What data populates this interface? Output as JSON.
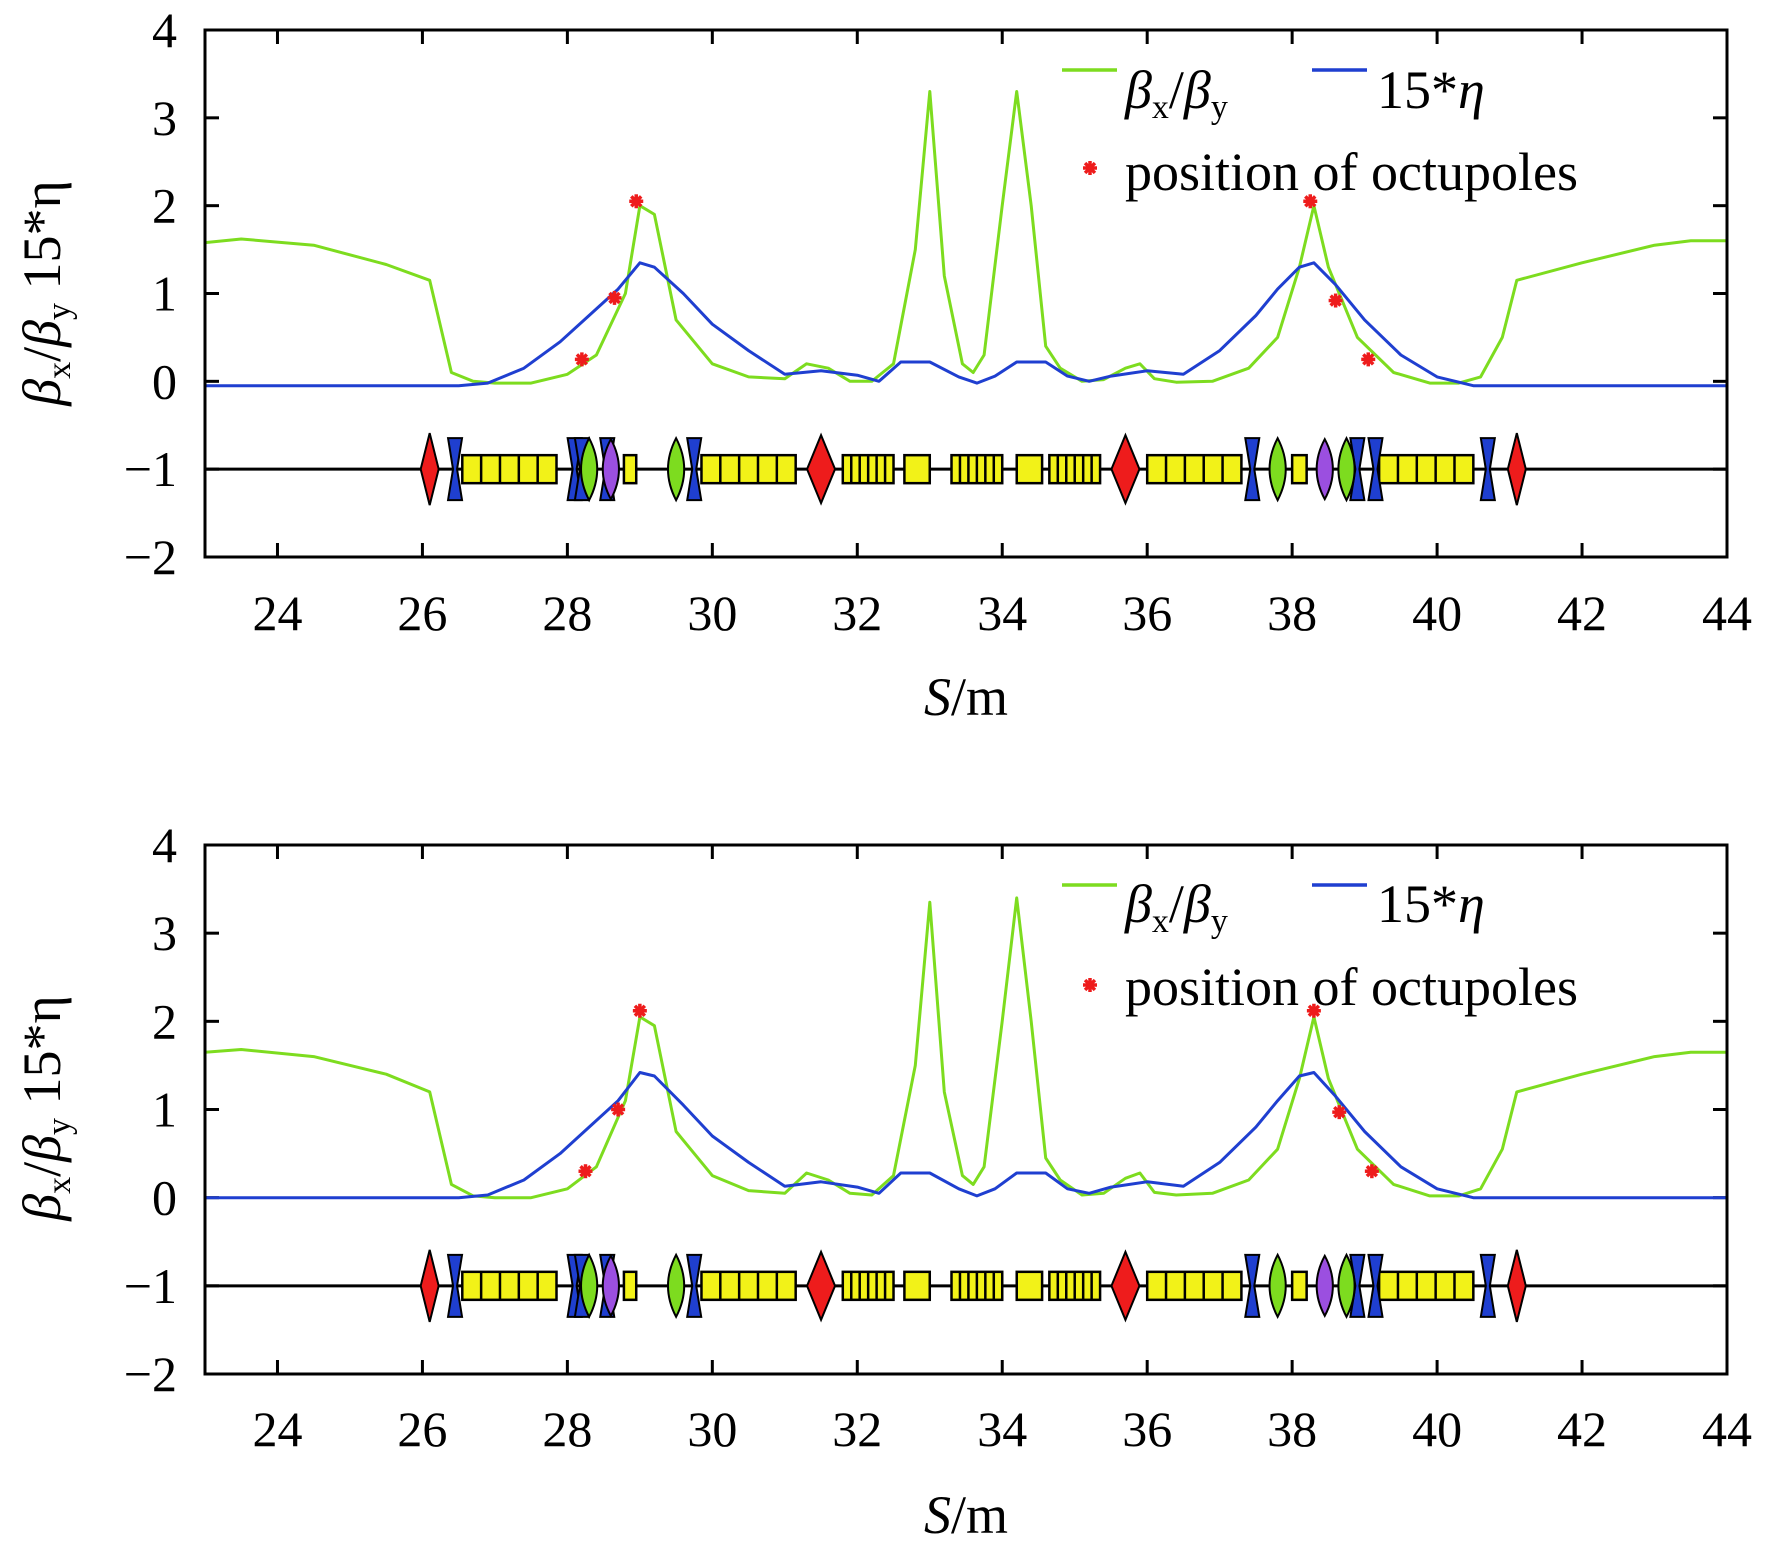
{
  "figure": {
    "panels": 2
  },
  "labels": {
    "beta_symbol": "β",
    "x_sub": "x",
    "y_sub": "y",
    "slash": "/",
    "ylabel_tail": " 15*η",
    "eta_prefix": "15*",
    "eta_symbol": "η",
    "s_symbol": "S",
    "s_unit": "/m",
    "octupoles": "position of octupoles"
  },
  "colors": {
    "beta_ratio": "#7ddc1f",
    "eta": "#1f3fd0",
    "octupole_marker": "#ee1c1c",
    "dipole_block": "#f2f218",
    "focusing_quad": "#7ddc1f",
    "defocusing_quad": "#1f3fd0",
    "sextupole": "#9b4fe0",
    "dipole_marker": "#ee1c1c",
    "beamline": "#000000"
  },
  "chart_data": [
    {
      "type": "line",
      "panel": "top",
      "xlabel": "S/m",
      "ylabel": "βx/βy 15*η",
      "xlim": [
        23,
        44
      ],
      "ylim": [
        -2,
        4
      ],
      "xticks": [
        24,
        26,
        28,
        30,
        32,
        34,
        36,
        38,
        40,
        42,
        44
      ],
      "yticks": [
        -2,
        -1,
        0,
        1,
        2,
        3,
        4
      ],
      "yticklabels": [
        "−2",
        "−1",
        "0",
        "1",
        "2",
        "3",
        "4"
      ],
      "legend_position": "top-right",
      "beamline_y": -1,
      "series": [
        {
          "name": "βx/βy",
          "color": "#7ddc1f",
          "x": [
            23.0,
            23.5,
            24.5,
            25.5,
            26.1,
            26.4,
            26.7,
            27.0,
            27.5,
            28.0,
            28.4,
            28.8,
            29.0,
            29.2,
            29.5,
            30.0,
            30.5,
            31.0,
            31.3,
            31.6,
            31.9,
            32.2,
            32.5,
            32.8,
            33.0,
            33.2,
            33.45,
            33.6,
            33.75,
            34.0,
            34.2,
            34.4,
            34.6,
            34.8,
            35.1,
            35.4,
            35.7,
            35.9,
            36.1,
            36.4,
            36.9,
            37.4,
            37.8,
            38.1,
            38.3,
            38.5,
            38.9,
            39.4,
            39.9,
            40.3,
            40.6,
            40.9,
            41.1,
            42.0,
            43.0,
            43.5,
            44.0
          ],
          "y": [
            1.58,
            1.62,
            1.55,
            1.33,
            1.15,
            0.1,
            0.0,
            -0.02,
            -0.02,
            0.08,
            0.3,
            1.0,
            2.0,
            1.9,
            0.7,
            0.2,
            0.05,
            0.03,
            0.2,
            0.15,
            0.0,
            0.0,
            0.2,
            1.5,
            3.3,
            1.2,
            0.2,
            0.1,
            0.3,
            2.0,
            3.3,
            2.0,
            0.4,
            0.15,
            0.0,
            0.02,
            0.15,
            0.2,
            0.03,
            -0.01,
            0.0,
            0.15,
            0.5,
            1.3,
            2.0,
            1.3,
            0.5,
            0.1,
            -0.02,
            -0.02,
            0.05,
            0.5,
            1.15,
            1.35,
            1.55,
            1.6,
            1.6
          ]
        },
        {
          "name": "15*η",
          "color": "#1f3fd0",
          "x": [
            23.0,
            26.5,
            26.9,
            27.4,
            27.9,
            28.3,
            28.7,
            29.0,
            29.2,
            29.6,
            30.0,
            30.5,
            31.0,
            31.5,
            32.0,
            32.3,
            32.6,
            33.0,
            33.4,
            33.65,
            33.9,
            34.2,
            34.6,
            34.9,
            35.2,
            35.5,
            36.0,
            36.5,
            37.0,
            37.5,
            37.8,
            38.1,
            38.3,
            38.6,
            39.0,
            39.5,
            40.0,
            40.5,
            41.0,
            44.0
          ],
          "y": [
            -0.05,
            -0.05,
            -0.02,
            0.15,
            0.45,
            0.75,
            1.05,
            1.35,
            1.3,
            1.0,
            0.65,
            0.35,
            0.08,
            0.12,
            0.07,
            0.0,
            0.22,
            0.22,
            0.05,
            -0.02,
            0.06,
            0.22,
            0.22,
            0.06,
            0.0,
            0.06,
            0.12,
            0.08,
            0.35,
            0.75,
            1.05,
            1.3,
            1.35,
            1.1,
            0.7,
            0.3,
            0.05,
            -0.05,
            -0.05,
            -0.05
          ]
        },
        {
          "name": "position of octupoles",
          "color": "#ee1c1c",
          "marker": "asterisk",
          "x": [
            28.2,
            28.65,
            28.95,
            38.25,
            38.6,
            39.05
          ],
          "y": [
            0.25,
            0.95,
            2.05,
            2.05,
            0.92,
            0.25
          ]
        }
      ],
      "lattice": {
        "dipole_markers": [
          26.1,
          31.5,
          35.7,
          41.1
        ],
        "defocusing_quads": [
          26.45,
          28.1,
          28.2,
          28.55,
          29.75,
          37.45,
          38.9,
          39.15,
          40.7
        ],
        "focusing_quads": [
          28.3,
          29.5,
          37.8,
          38.75
        ],
        "sextupoles": [
          28.6,
          38.45
        ],
        "dipole_blocks": [
          {
            "start": 26.55,
            "end": 27.85,
            "segments": 5
          },
          {
            "start": 28.78,
            "end": 28.95,
            "segments": 1
          },
          {
            "start": 29.85,
            "end": 31.15,
            "segments": 5
          },
          {
            "start": 31.8,
            "end": 32.5,
            "segments": 6
          },
          {
            "start": 32.65,
            "end": 33.0,
            "segments": 1
          },
          {
            "start": 33.3,
            "end": 34.0,
            "segments": 6
          },
          {
            "start": 34.2,
            "end": 34.55,
            "segments": 1
          },
          {
            "start": 34.65,
            "end": 35.35,
            "segments": 6
          },
          {
            "start": 36.0,
            "end": 37.3,
            "segments": 5
          },
          {
            "start": 38.0,
            "end": 38.2,
            "segments": 1
          },
          {
            "start": 39.2,
            "end": 40.5,
            "segments": 5
          }
        ]
      }
    },
    {
      "type": "line",
      "panel": "bottom",
      "xlabel": "S/m",
      "ylabel": "βx/βy 15*η",
      "xlim": [
        23,
        44
      ],
      "ylim": [
        -2,
        4
      ],
      "xticks": [
        24,
        26,
        28,
        30,
        32,
        34,
        36,
        38,
        40,
        42,
        44
      ],
      "yticks": [
        -2,
        -1,
        0,
        1,
        2,
        3,
        4
      ],
      "yticklabels": [
        "−2",
        "−1",
        "0",
        "1",
        "2",
        "3",
        "4"
      ],
      "legend_position": "top-right",
      "beamline_y": -1,
      "series": [
        {
          "name": "βx/βy",
          "color": "#7ddc1f",
          "x": [
            23.0,
            23.5,
            24.5,
            25.5,
            26.1,
            26.4,
            26.7,
            27.0,
            27.5,
            28.0,
            28.4,
            28.8,
            29.0,
            29.2,
            29.5,
            30.0,
            30.5,
            31.0,
            31.3,
            31.6,
            31.9,
            32.2,
            32.5,
            32.8,
            33.0,
            33.2,
            33.45,
            33.6,
            33.75,
            34.0,
            34.2,
            34.4,
            34.6,
            34.8,
            35.1,
            35.4,
            35.7,
            35.9,
            36.1,
            36.4,
            36.9,
            37.4,
            37.8,
            38.1,
            38.3,
            38.5,
            38.9,
            39.4,
            39.9,
            40.3,
            40.6,
            40.9,
            41.1,
            42.0,
            43.0,
            43.5,
            44.0
          ],
          "y": [
            1.65,
            1.68,
            1.6,
            1.4,
            1.2,
            0.15,
            0.02,
            0.0,
            0.0,
            0.1,
            0.35,
            1.1,
            2.05,
            1.95,
            0.75,
            0.25,
            0.08,
            0.05,
            0.28,
            0.2,
            0.05,
            0.03,
            0.25,
            1.5,
            3.35,
            1.2,
            0.25,
            0.15,
            0.35,
            2.0,
            3.4,
            2.0,
            0.45,
            0.2,
            0.03,
            0.05,
            0.22,
            0.28,
            0.06,
            0.03,
            0.05,
            0.2,
            0.55,
            1.35,
            2.05,
            1.35,
            0.55,
            0.15,
            0.02,
            0.02,
            0.1,
            0.55,
            1.2,
            1.4,
            1.6,
            1.65,
            1.65
          ]
        },
        {
          "name": "15*η",
          "color": "#1f3fd0",
          "x": [
            23.0,
            26.5,
            26.9,
            27.4,
            27.9,
            28.3,
            28.7,
            29.0,
            29.2,
            29.6,
            30.0,
            30.5,
            31.0,
            31.5,
            32.0,
            32.3,
            32.6,
            33.0,
            33.4,
            33.65,
            33.9,
            34.2,
            34.6,
            34.9,
            35.2,
            35.5,
            36.0,
            36.5,
            37.0,
            37.5,
            37.8,
            38.1,
            38.3,
            38.6,
            39.0,
            39.5,
            40.0,
            40.5,
            41.0,
            44.0
          ],
          "y": [
            0.0,
            0.0,
            0.03,
            0.2,
            0.5,
            0.8,
            1.1,
            1.42,
            1.38,
            1.05,
            0.7,
            0.4,
            0.13,
            0.18,
            0.12,
            0.05,
            0.28,
            0.28,
            0.1,
            0.02,
            0.1,
            0.28,
            0.28,
            0.1,
            0.05,
            0.12,
            0.18,
            0.13,
            0.4,
            0.8,
            1.1,
            1.38,
            1.42,
            1.15,
            0.75,
            0.35,
            0.1,
            0.0,
            0.0,
            0.0
          ]
        },
        {
          "name": "position of octupoles",
          "color": "#ee1c1c",
          "marker": "asterisk",
          "x": [
            28.25,
            28.7,
            29.0,
            38.3,
            38.65,
            39.1
          ],
          "y": [
            0.3,
            1.0,
            2.12,
            2.12,
            0.97,
            0.3
          ]
        }
      ],
      "lattice": {
        "dipole_markers": [
          26.1,
          31.5,
          35.7,
          41.1
        ],
        "defocusing_quads": [
          26.45,
          28.1,
          28.2,
          28.55,
          29.75,
          37.45,
          38.9,
          39.15,
          40.7
        ],
        "focusing_quads": [
          28.3,
          29.5,
          37.8,
          38.75
        ],
        "sextupoles": [
          28.6,
          38.45
        ],
        "dipole_blocks": [
          {
            "start": 26.55,
            "end": 27.85,
            "segments": 5
          },
          {
            "start": 28.78,
            "end": 28.95,
            "segments": 1
          },
          {
            "start": 29.85,
            "end": 31.15,
            "segments": 5
          },
          {
            "start": 31.8,
            "end": 32.5,
            "segments": 6
          },
          {
            "start": 32.65,
            "end": 33.0,
            "segments": 1
          },
          {
            "start": 33.3,
            "end": 34.0,
            "segments": 6
          },
          {
            "start": 34.2,
            "end": 34.55,
            "segments": 1
          },
          {
            "start": 34.65,
            "end": 35.35,
            "segments": 6
          },
          {
            "start": 36.0,
            "end": 37.3,
            "segments": 5
          },
          {
            "start": 38.0,
            "end": 38.2,
            "segments": 1
          },
          {
            "start": 39.2,
            "end": 40.5,
            "segments": 5
          }
        ]
      }
    }
  ]
}
